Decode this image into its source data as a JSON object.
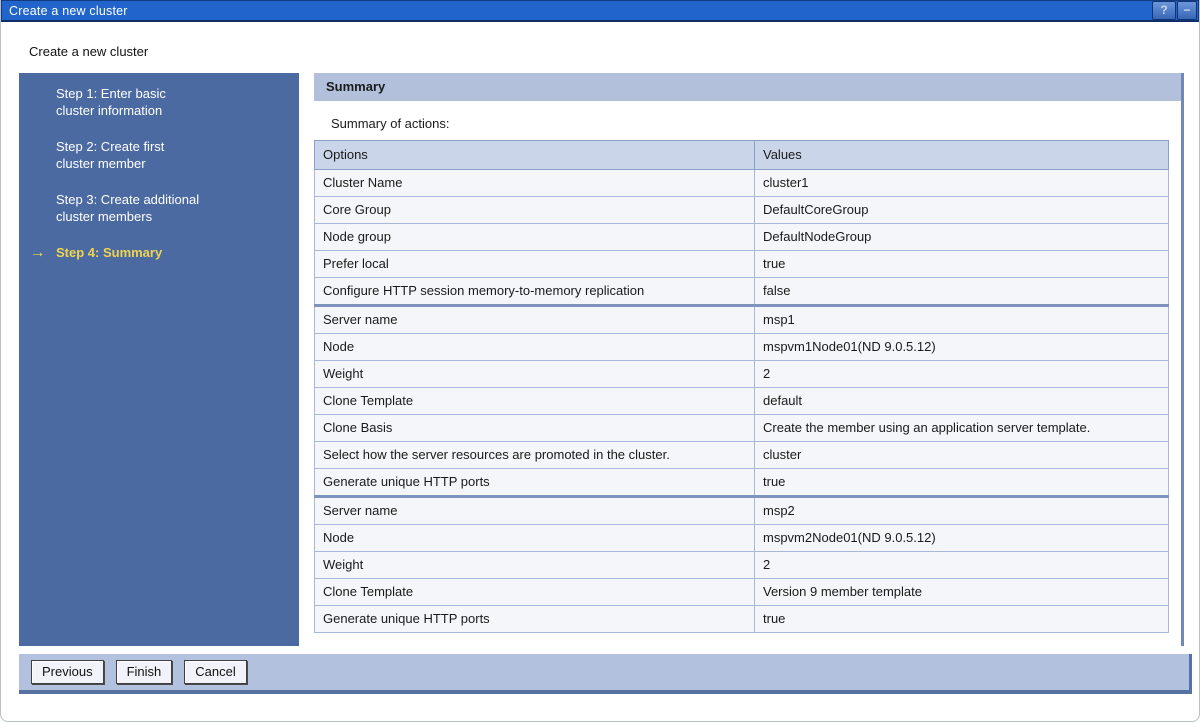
{
  "window": {
    "title": "Create a new cluster",
    "help_button": "?",
    "minimize_button": "−"
  },
  "page": {
    "heading": "Create a new cluster"
  },
  "wizard": {
    "active_arrow": "→",
    "steps": [
      {
        "label": "Step 1: Enter basic cluster information",
        "active": false
      },
      {
        "label": "Step 2: Create first cluster member",
        "active": false
      },
      {
        "label": "Step 3: Create additional cluster members",
        "active": false
      },
      {
        "label": "Step 4: Summary",
        "active": true
      }
    ]
  },
  "panel": {
    "title": "Summary",
    "summary_label": "Summary of actions:",
    "table": {
      "headers": [
        "Options",
        "Values"
      ],
      "rows": [
        {
          "option": "Cluster Name",
          "value": "cluster1",
          "group_start": false
        },
        {
          "option": "Core Group",
          "value": "DefaultCoreGroup",
          "group_start": false
        },
        {
          "option": "Node group",
          "value": "DefaultNodeGroup",
          "group_start": false
        },
        {
          "option": "Prefer local",
          "value": "true",
          "group_start": false
        },
        {
          "option": "Configure HTTP session memory-to-memory replication",
          "value": "false",
          "group_start": false
        },
        {
          "option": "Server name",
          "value": "msp1",
          "group_start": true
        },
        {
          "option": "Node",
          "value": "mspvm1Node01(ND 9.0.5.12)",
          "group_start": false
        },
        {
          "option": "Weight",
          "value": "2",
          "group_start": false
        },
        {
          "option": "Clone Template",
          "value": "default",
          "group_start": false
        },
        {
          "option": "Clone Basis",
          "value": "Create the member using an application server template.",
          "group_start": false
        },
        {
          "option": "Select how the server resources are promoted in the cluster.",
          "value": "cluster",
          "group_start": false
        },
        {
          "option": "Generate unique HTTP ports",
          "value": "true",
          "group_start": false
        },
        {
          "option": "Server name",
          "value": "msp2",
          "group_start": true
        },
        {
          "option": "Node",
          "value": "mspvm2Node01(ND 9.0.5.12)",
          "group_start": false
        },
        {
          "option": "Weight",
          "value": "2",
          "group_start": false
        },
        {
          "option": "Clone Template",
          "value": "Version 9 member template",
          "group_start": false
        },
        {
          "option": "Generate unique HTTP ports",
          "value": "true",
          "group_start": false
        }
      ]
    }
  },
  "footer": {
    "buttons": [
      {
        "label": "Previous",
        "name": "previous-button"
      },
      {
        "label": "Finish",
        "name": "finish-button"
      },
      {
        "label": "Cancel",
        "name": "cancel-button"
      }
    ]
  },
  "colors": {
    "titlebar_blue": "#2164cb",
    "sidebar_blue": "#4b6aa1",
    "active_step_yellow": "#f0d351",
    "panel_header_blue": "#b2c0dc",
    "table_header_blue": "#cbd5ea",
    "row_background": "#f5f6f9",
    "row_border": "#a9b8da",
    "group_separator": "#7e93bd",
    "footer_bar_blue": "#b2c1dd",
    "footer_shadow": "#5672a3"
  }
}
